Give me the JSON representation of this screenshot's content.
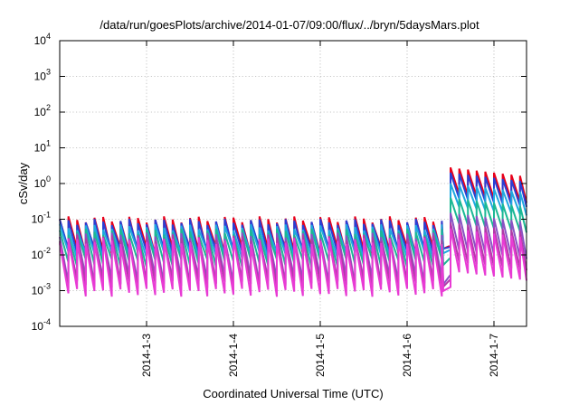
{
  "chart_data": {
    "type": "line",
    "title": "/data/run/goesPlots/archive/2014-01-07/09:00/flux/../bryn/5daysMars.plot",
    "xlabel": "Coordinated Universal Time (UTC)",
    "ylabel": "cSv/day",
    "yscale": "log",
    "ylim": [
      0.0001,
      10000
    ],
    "xlim": [
      "2014-01-02 00:00",
      "2014-01-07 09:00"
    ],
    "grid": true,
    "x_ticks": [
      {
        "x": "2014-01-03",
        "label": "2014-1-3"
      },
      {
        "x": "2014-01-04",
        "label": "2014-1-4"
      },
      {
        "x": "2014-01-05",
        "label": "2014-1-5"
      },
      {
        "x": "2014-01-06",
        "label": "2014-1-6"
      },
      {
        "x": "2014-01-07",
        "label": "2014-1-7"
      }
    ],
    "y_ticks": [
      {
        "y": 0.0001,
        "base": "10",
        "exp": "-4"
      },
      {
        "y": 0.001,
        "base": "10",
        "exp": "-3"
      },
      {
        "y": 0.01,
        "base": "10",
        "exp": "-2"
      },
      {
        "y": 0.1,
        "base": "10",
        "exp": "-1"
      },
      {
        "y": 1,
        "base": "10",
        "exp": "0"
      },
      {
        "y": 10,
        "base": "10",
        "exp": "1"
      },
      {
        "y": 100,
        "base": "10",
        "exp": "2"
      },
      {
        "y": 1000,
        "base": "10",
        "exp": "3"
      },
      {
        "y": 10000,
        "base": "10",
        "exp": "4"
      }
    ],
    "pattern": {
      "cycle_hours": 2.4,
      "base_period": {
        "from": "2014-01-02 00:00",
        "to": "2014-01-06 10:00"
      },
      "gap_period": {
        "from": "2014-01-06 10:00",
        "to": "2014-01-06 12:00"
      },
      "event_period": {
        "from": "2014-01-06 12:00",
        "to": "2014-01-07 09:00",
        "event_peak": "2014-01-06 12:00",
        "decay_days": 1.2,
        "final_level": 0.45
      }
    },
    "series": [
      {
        "color": "#e8001a",
        "high": 0.1,
        "low": 0.013,
        "event_high": 2.8
      },
      {
        "color": "#2a3fd4",
        "high": 0.085,
        "low": 0.012,
        "event_high": 2.0
      },
      {
        "color": "#1fa8e0",
        "high": 0.06,
        "low": 0.01,
        "event_high": 1.0
      },
      {
        "color": "#1bb894",
        "high": 0.045,
        "low": 0.006,
        "event_high": 0.4
      },
      {
        "color": "#8a52c4",
        "high": 0.035,
        "low": 0.002,
        "event_high": 0.15
      },
      {
        "color": "#b23aa8",
        "high": 0.03,
        "low": 0.0015,
        "event_high": 0.08
      },
      {
        "color": "#e83bd4",
        "high": 0.025,
        "low": 0.0009,
        "event_high": 0.055
      }
    ]
  }
}
